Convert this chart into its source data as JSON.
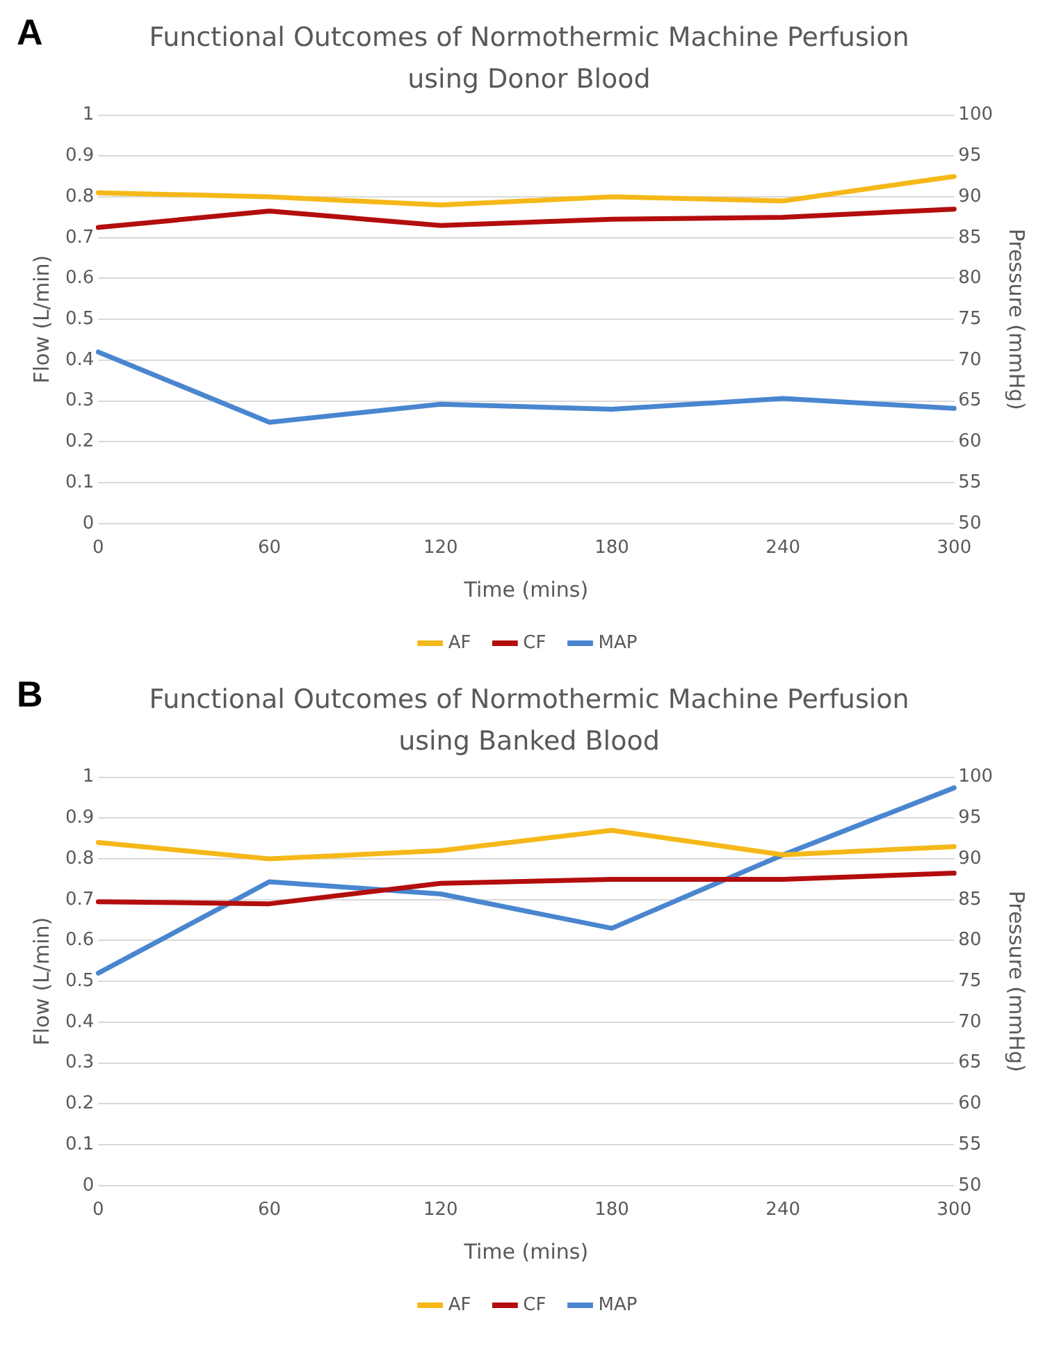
{
  "chart_data": [
    {
      "type": "line",
      "title": "Functional Outcomes of Normothermic Machine Perfusion using Donor Blood",
      "annotations": [
        "A"
      ],
      "xlabel": "Time (mins)",
      "ylabel": "Flow (L/min)",
      "y2label": "Pressure (mmHg)",
      "categories": [
        "0",
        "60",
        "120",
        "180",
        "240",
        "300"
      ],
      "series": [
        {
          "name": "AF",
          "color": "#f5b819",
          "values": [
            0.81,
            0.8,
            0.78,
            0.8,
            0.79,
            0.85
          ]
        },
        {
          "name": "CF",
          "color": "#b30d0d",
          "values": [
            0.725,
            0.765,
            0.73,
            0.745,
            0.75,
            0.77
          ]
        },
        {
          "name": "MAP",
          "color": "#4a86cf",
          "axis": "y2",
          "values": [
            71,
            62.4,
            64.6,
            64,
            65.3,
            64.1
          ]
        }
      ],
      "ylim": [
        0,
        1
      ],
      "yticks": [
        0,
        0.1,
        0.2,
        0.3,
        0.4,
        0.5,
        0.6,
        0.7,
        0.8,
        0.9,
        1
      ],
      "y2lim": [
        50,
        100
      ],
      "y2ticks": [
        50,
        55,
        60,
        65,
        70,
        75,
        80,
        85,
        90,
        95,
        100
      ],
      "grid": "y",
      "legend": "bottom",
      "marker": "none",
      "line_style": "solid"
    },
    {
      "type": "line",
      "title": "Functional Outcomes of Normothermic Machine Perfusion using Banked Blood",
      "annotations": [
        "B"
      ],
      "xlabel": "Time (mins)",
      "ylabel": "Flow (L/min)",
      "y2label": "Pressure (mmHg)",
      "categories": [
        "0",
        "60",
        "120",
        "180",
        "240",
        "300"
      ],
      "series": [
        {
          "name": "AF",
          "color": "#f5b819",
          "values": [
            0.84,
            0.8,
            0.82,
            0.87,
            0.81,
            0.83
          ]
        },
        {
          "name": "CF",
          "color": "#b30d0d",
          "values": [
            0.695,
            0.69,
            0.74,
            0.75,
            0.75,
            0.765
          ]
        },
        {
          "name": "MAP",
          "color": "#4a86cf",
          "axis": "y2",
          "values": [
            76,
            87.2,
            85.7,
            81.5,
            90.5,
            98.7
          ]
        }
      ],
      "ylim": [
        0,
        1
      ],
      "yticks": [
        0,
        0.1,
        0.2,
        0.3,
        0.4,
        0.5,
        0.6,
        0.7,
        0.8,
        0.9,
        1
      ],
      "y2lim": [
        50,
        100
      ],
      "y2ticks": [
        50,
        55,
        60,
        65,
        70,
        75,
        80,
        85,
        90,
        95,
        100
      ],
      "grid": "y",
      "legend": "bottom",
      "marker": "none",
      "line_style": "solid"
    }
  ]
}
